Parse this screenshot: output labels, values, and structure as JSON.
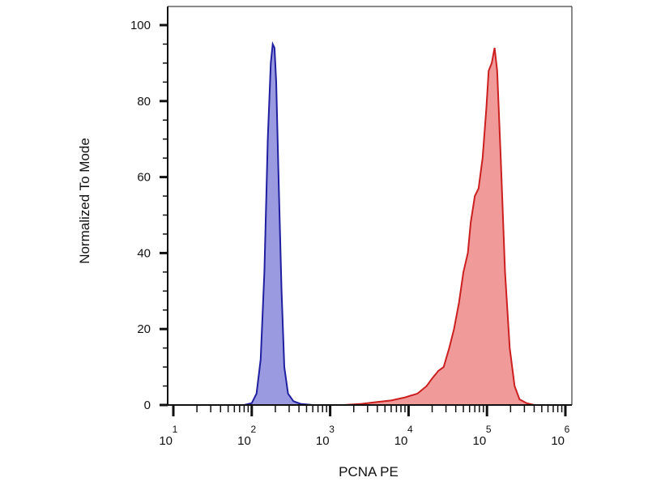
{
  "chart_data": {
    "type": "area",
    "xlabel": "PCNA PE",
    "ylabel": "Normalized To Mode",
    "x_scale": "log10",
    "xlim": [
      10,
      1000000
    ],
    "ylim": [
      0,
      100
    ],
    "y_ticks": [
      0,
      20,
      40,
      60,
      80,
      100
    ],
    "x_ticks": [
      {
        "value": 10,
        "base": "10",
        "exponent": "1"
      },
      {
        "value": 100,
        "base": "10",
        "exponent": "2"
      },
      {
        "value": 1000,
        "base": "10",
        "exponent": "3"
      },
      {
        "value": 10000,
        "base": "10",
        "exponent": "4"
      },
      {
        "value": 100000,
        "base": "10",
        "exponent": "5"
      },
      {
        "value": 1000000,
        "base": "10",
        "exponent": "6"
      }
    ],
    "grid": false,
    "legend": "none",
    "series": [
      {
        "color": "#1f1fa0",
        "fill": "#9a9ae0",
        "points": [
          [
            10,
            0
          ],
          [
            80,
            0
          ],
          [
            100,
            0.5
          ],
          [
            115,
            3
          ],
          [
            130,
            12
          ],
          [
            145,
            35
          ],
          [
            160,
            70
          ],
          [
            175,
            90
          ],
          [
            185,
            95
          ],
          [
            195,
            94
          ],
          [
            205,
            85
          ],
          [
            220,
            60
          ],
          [
            240,
            30
          ],
          [
            260,
            10
          ],
          [
            290,
            3
          ],
          [
            340,
            1
          ],
          [
            420,
            0.3
          ],
          [
            600,
            0
          ],
          [
            1000000,
            0
          ]
        ]
      },
      {
        "color": "#cc1f1f",
        "fill": "#f09a9a",
        "points": [
          [
            10,
            0
          ],
          [
            1500,
            0
          ],
          [
            2500,
            0.3
          ],
          [
            4000,
            0.8
          ],
          [
            6000,
            1.2
          ],
          [
            9000,
            2
          ],
          [
            13000,
            3
          ],
          [
            17000,
            5
          ],
          [
            20000,
            7
          ],
          [
            24000,
            9
          ],
          [
            28000,
            10
          ],
          [
            33000,
            15
          ],
          [
            38000,
            20
          ],
          [
            44000,
            27
          ],
          [
            50000,
            35
          ],
          [
            57000,
            40
          ],
          [
            62000,
            48
          ],
          [
            70000,
            55
          ],
          [
            78000,
            57
          ],
          [
            88000,
            65
          ],
          [
            98000,
            78
          ],
          [
            105000,
            88
          ],
          [
            115000,
            90
          ],
          [
            125000,
            94
          ],
          [
            135000,
            88
          ],
          [
            150000,
            65
          ],
          [
            170000,
            35
          ],
          [
            195000,
            15
          ],
          [
            225000,
            5
          ],
          [
            260000,
            1.5
          ],
          [
            320000,
            0.5
          ],
          [
            400000,
            0
          ],
          [
            1000000,
            0
          ]
        ]
      }
    ]
  }
}
